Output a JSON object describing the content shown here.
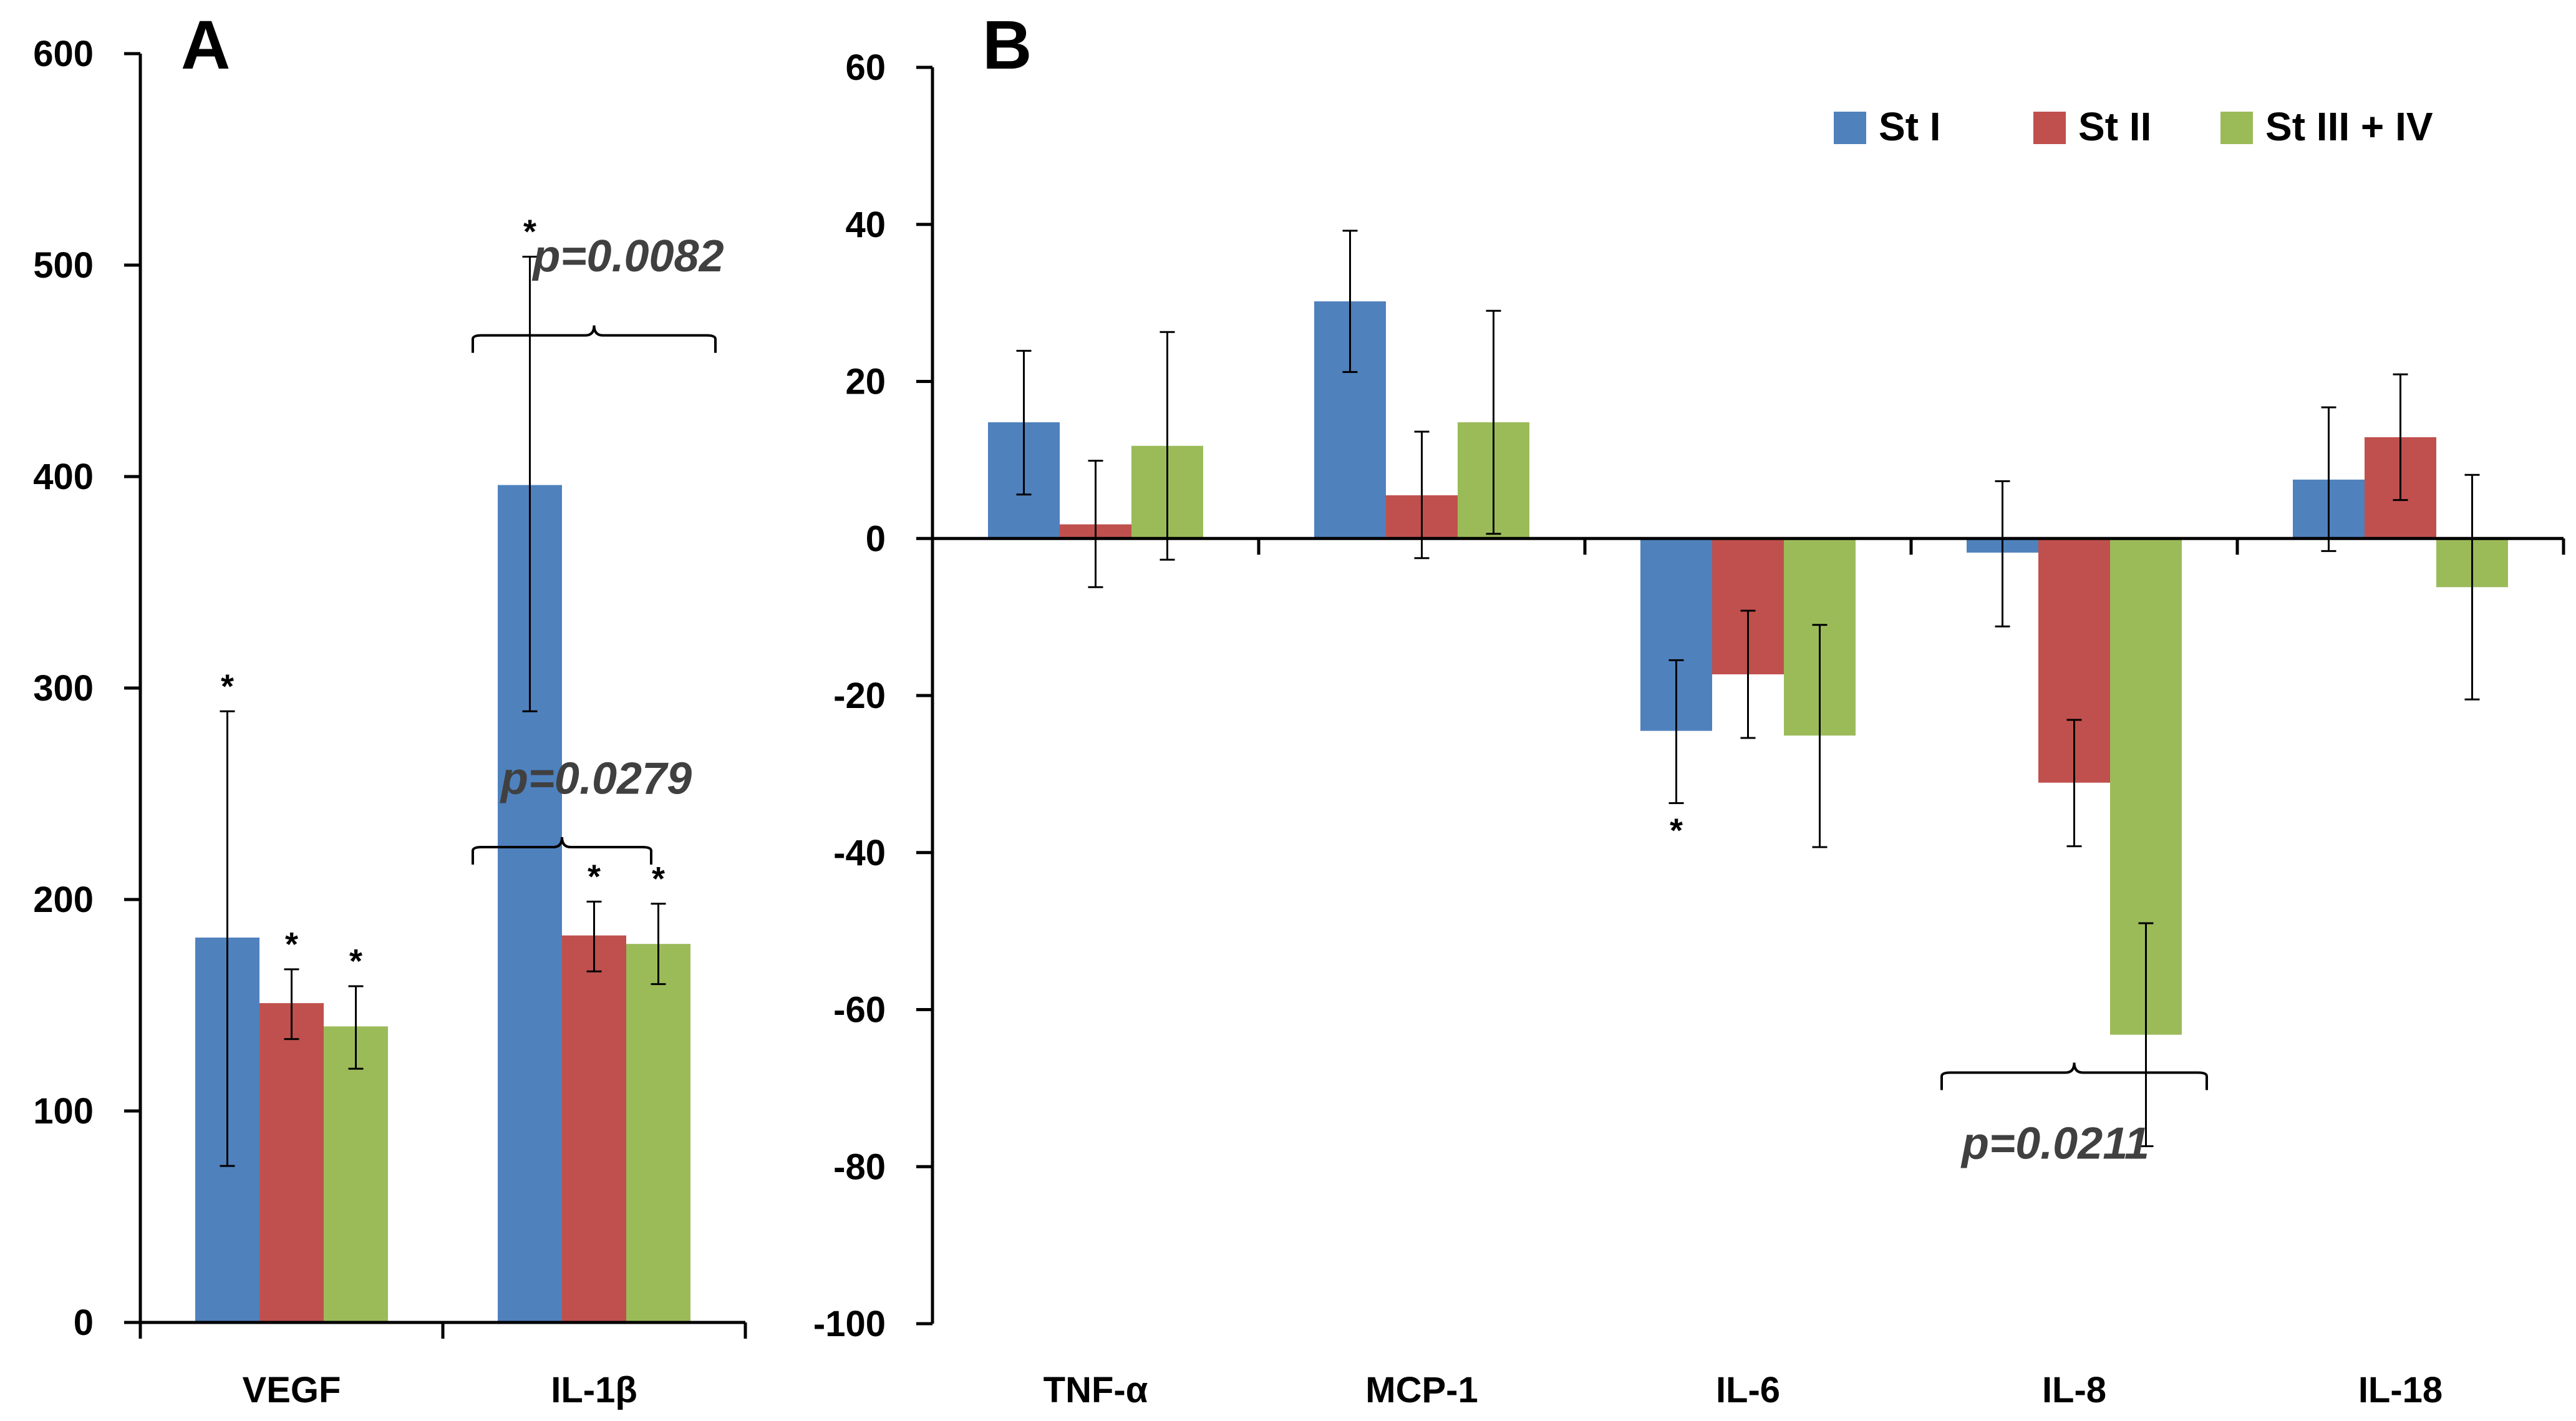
{
  "colors": {
    "St I": "#4F81BD",
    "St II": "#C0504D",
    "St III + IV": "#9BBB59",
    "axis": "#000000",
    "pvalue": "#404040"
  },
  "legend": {
    "placement": "top-right of panel B",
    "items": [
      "St I",
      "St II",
      "St III + IV"
    ]
  },
  "chart_data": [
    {
      "panel": "A",
      "type": "bar",
      "title": "A",
      "categories": [
        "VEGF",
        "IL-1β"
      ],
      "ylim": [
        0,
        600
      ],
      "yticks": [
        0,
        100,
        200,
        300,
        400,
        500,
        600
      ],
      "series": [
        {
          "name": "St I",
          "values": [
            182,
            396
          ],
          "err_low": [
            74,
            289
          ],
          "err_high": [
            289,
            504
          ]
        },
        {
          "name": "St II",
          "values": [
            151,
            183
          ],
          "err_low": [
            134,
            166
          ],
          "err_high": [
            167,
            199
          ]
        },
        {
          "name": "St III + IV",
          "values": [
            140,
            179
          ],
          "err_low": [
            120,
            160
          ],
          "err_high": [
            159,
            198
          ]
        }
      ],
      "stars": [
        {
          "category": 0,
          "series": 0,
          "text": "*"
        },
        {
          "category": 0,
          "series": 1,
          "text": "*"
        },
        {
          "category": 0,
          "series": 2,
          "text": "*"
        },
        {
          "category": 1,
          "series": 0,
          "text": "*"
        },
        {
          "category": 1,
          "series": 1,
          "text": "*"
        },
        {
          "category": 1,
          "series": 2,
          "text": "*"
        }
      ],
      "annotations": [
        {
          "text": "p=0.0082",
          "category": 1,
          "from_series": 0,
          "to_series": 2,
          "y": 465,
          "label_y": 497
        },
        {
          "text": "p=0.0279",
          "category": 1,
          "from_series": 0,
          "to_series": 1,
          "y": 223,
          "label_y": 250
        }
      ]
    },
    {
      "panel": "B",
      "type": "bar",
      "title": "B",
      "categories": [
        "TNF-α",
        "MCP-1",
        "IL-6",
        "IL-8",
        "IL-18"
      ],
      "ylim": [
        -100,
        60
      ],
      "yticks": [
        -100,
        -80,
        -60,
        -40,
        -20,
        0,
        20,
        40,
        60
      ],
      "series": [
        {
          "name": "St I",
          "values": [
            14.8,
            30.2,
            -24.5,
            -1.8,
            7.5
          ],
          "err_low": [
            5.6,
            21.2,
            -33.7,
            -11.2,
            -1.6
          ],
          "err_high": [
            23.9,
            39.2,
            -15.5,
            7.3,
            16.7
          ]
        },
        {
          "name": "St II",
          "values": [
            1.8,
            5.5,
            -17.3,
            -31.1,
            12.9
          ],
          "err_low": [
            -6.2,
            -2.5,
            -25.4,
            -39.2,
            4.9
          ],
          "err_high": [
            9.9,
            13.6,
            -9.2,
            -23.1,
            20.9
          ]
        },
        {
          "name": "St III + IV",
          "values": [
            11.8,
            14.8,
            -25.1,
            -63.2,
            -6.2
          ],
          "err_low": [
            -2.7,
            0.6,
            -39.3,
            -77.4,
            -20.5
          ],
          "err_high": [
            26.3,
            29.0,
            -11.0,
            -49.0,
            8.1
          ]
        }
      ],
      "stars": [
        {
          "category": 2,
          "series": 0,
          "text": "*"
        }
      ],
      "annotations": [
        {
          "text": "p=0.0211",
          "category": 3,
          "from_series": 0,
          "to_series": 2,
          "y": -68.5,
          "label_y": -79
        }
      ]
    }
  ]
}
